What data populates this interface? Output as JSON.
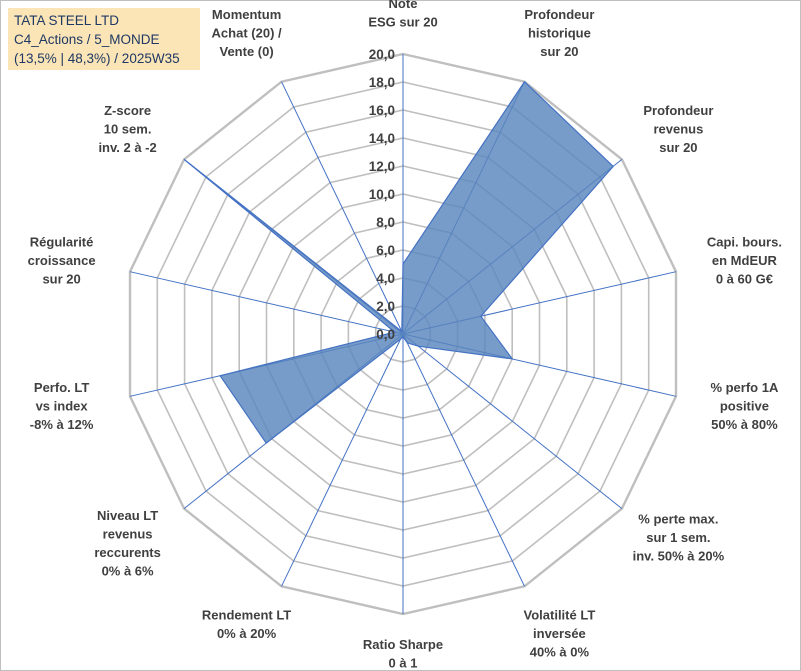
{
  "header": {
    "line1": "TATA STEEL LTD",
    "line2": "C4_Actions / 5_MONDE",
    "line3": "(13,5% | 48,3%) / 2025W35"
  },
  "colors": {
    "fill": "#5a86bd",
    "stroke": "#4472c4",
    "grid": "#bfbfbf",
    "header_bg": "#fbe5b6",
    "header_text": "#1f3864"
  },
  "chart_data": {
    "type": "radar",
    "rmin": 0,
    "rmax": 20,
    "tick_step": 2,
    "ticks": [
      "0,0",
      "2,0",
      "4,0",
      "6,0",
      "8,0",
      "10,0",
      "12,0",
      "14,0",
      "16,0",
      "18,0",
      "20,0"
    ],
    "axes": [
      {
        "label": [
          "Note",
          "ESG sur 20"
        ],
        "value": 5.0
      },
      {
        "label": [
          "Profondeur",
          "historique",
          "sur 20"
        ],
        "value": 20.0
      },
      {
        "label": [
          "Profondeur",
          "revenus",
          "sur 20"
        ],
        "value": 19.2
      },
      {
        "label": [
          "Capi. bours.",
          "en MdEUR",
          "0 à 60 G€"
        ],
        "value": 5.7
      },
      {
        "label": [
          "% perfo 1A",
          "positive",
          "50% à 80%"
        ],
        "value": 8.0
      },
      {
        "label": [
          "% perte max.",
          "sur 1 sem.",
          "inv. 50% à 20%"
        ],
        "value": 1.4
      },
      {
        "label": [
          "Volatilité LT",
          "inversée",
          "40% à 0%"
        ],
        "value": 0.7
      },
      {
        "label": [
          "Ratio Sharpe",
          "0 à 1"
        ],
        "value": 0.2
      },
      {
        "label": [
          "Rendement LT",
          "0% à 20%"
        ],
        "value": 0.4
      },
      {
        "label": [
          "Niveau LT",
          "revenus",
          "reccurents",
          "0% à 6%"
        ],
        "value": 12.5
      },
      {
        "label": [
          "Perfo. LT",
          "vs index",
          "-8% à 12%"
        ],
        "value": 13.4
      },
      {
        "label": [
          "Régularité",
          "croissance",
          "sur 20"
        ],
        "value": 0.6
      },
      {
        "label": [
          "Z-score",
          "10 sem.",
          "inv. 2 à -2"
        ],
        "value": 20.0
      },
      {
        "label": [
          "Momentum",
          "Achat (20) /",
          "Vente (0)"
        ],
        "value": 0.2
      }
    ]
  }
}
